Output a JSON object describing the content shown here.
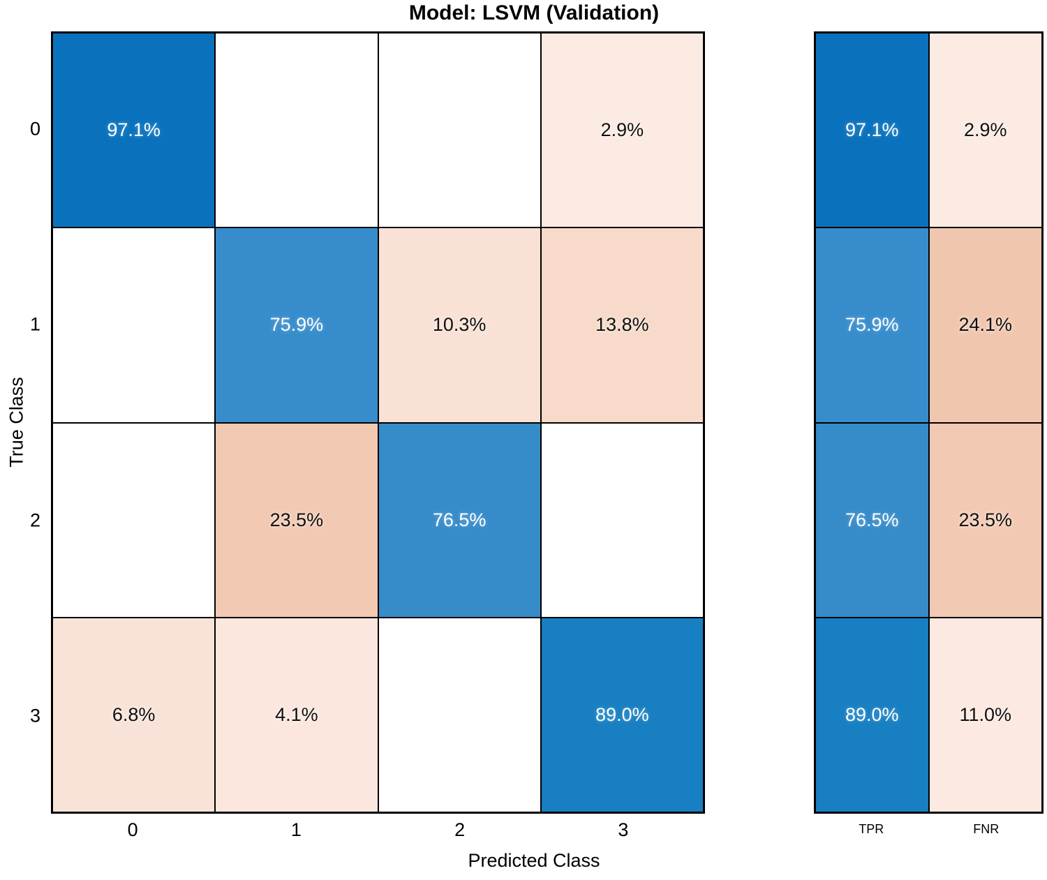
{
  "figure": {
    "title": "Model: LSVM (Validation)"
  },
  "chart_data": {
    "type": "heatmap",
    "subtype": "confusion-matrix",
    "title": "Model: LSVM (Validation)",
    "xlabel": "Predicted Class",
    "ylabel": "True Class",
    "x_categories": [
      "0",
      "1",
      "2",
      "3"
    ],
    "y_categories": [
      "0",
      "1",
      "2",
      "3"
    ],
    "normalization": "row-percent",
    "values_percent": [
      [
        97.1,
        null,
        null,
        2.9
      ],
      [
        null,
        75.9,
        10.3,
        13.8
      ],
      [
        null,
        23.5,
        76.5,
        null
      ],
      [
        6.8,
        4.1,
        null,
        89.0
      ]
    ],
    "cell_labels": [
      [
        "97.1%",
        "",
        "",
        "2.9%"
      ],
      [
        "",
        "75.9%",
        "10.3%",
        "13.8%"
      ],
      [
        "",
        "23.5%",
        "76.5%",
        ""
      ],
      [
        "6.8%",
        "4.1%",
        "",
        "89.0%"
      ]
    ],
    "cell_colors": [
      [
        "#0a72bd",
        "#ffffff",
        "#ffffff",
        "#fcebe3"
      ],
      [
        "#ffffff",
        "#378dcc",
        "#f9e1d5",
        "#f7dac9"
      ],
      [
        "#ffffff",
        "#f2c9b3",
        "#368bc9",
        "#ffffff"
      ],
      [
        "#f9e3d8",
        "#fbe7de",
        "#ffffff",
        "#177fc2"
      ]
    ],
    "cell_text_colors": [
      [
        "white",
        "black",
        "black",
        "black"
      ],
      [
        "black",
        "white",
        "black",
        "black"
      ],
      [
        "black",
        "black",
        "white",
        "black"
      ],
      [
        "black",
        "black",
        "black",
        "white"
      ]
    ],
    "column_summary": {
      "headers": [
        "TPR",
        "FNR"
      ],
      "values_percent": [
        [
          97.1,
          2.9
        ],
        [
          75.9,
          24.1
        ],
        [
          76.5,
          23.5
        ],
        [
          89.0,
          11.0
        ]
      ],
      "labels": [
        [
          "97.1%",
          "2.9%"
        ],
        [
          "75.9%",
          "24.1%"
        ],
        [
          "76.5%",
          "23.5%"
        ],
        [
          "89.0%",
          "11.0%"
        ]
      ],
      "colors": [
        [
          "#0a72bd",
          "#fcebe3"
        ],
        [
          "#378dcc",
          "#f1c6af"
        ],
        [
          "#368bc9",
          "#f2c9b3"
        ],
        [
          "#177fc2",
          "#fce9e1"
        ]
      ],
      "text_colors": [
        [
          "white",
          "black"
        ],
        [
          "white",
          "black"
        ],
        [
          "white",
          "black"
        ],
        [
          "white",
          "black"
        ]
      ]
    },
    "layout": {
      "legend": "none",
      "grid": "cell-borders",
      "summary_position": "right"
    },
    "colors": {
      "diagonal_base": "#0072bd",
      "offdiagonal_base": "#d95319",
      "axis_text": "#000000",
      "cell_border": "#000000",
      "background": "#ffffff"
    }
  }
}
